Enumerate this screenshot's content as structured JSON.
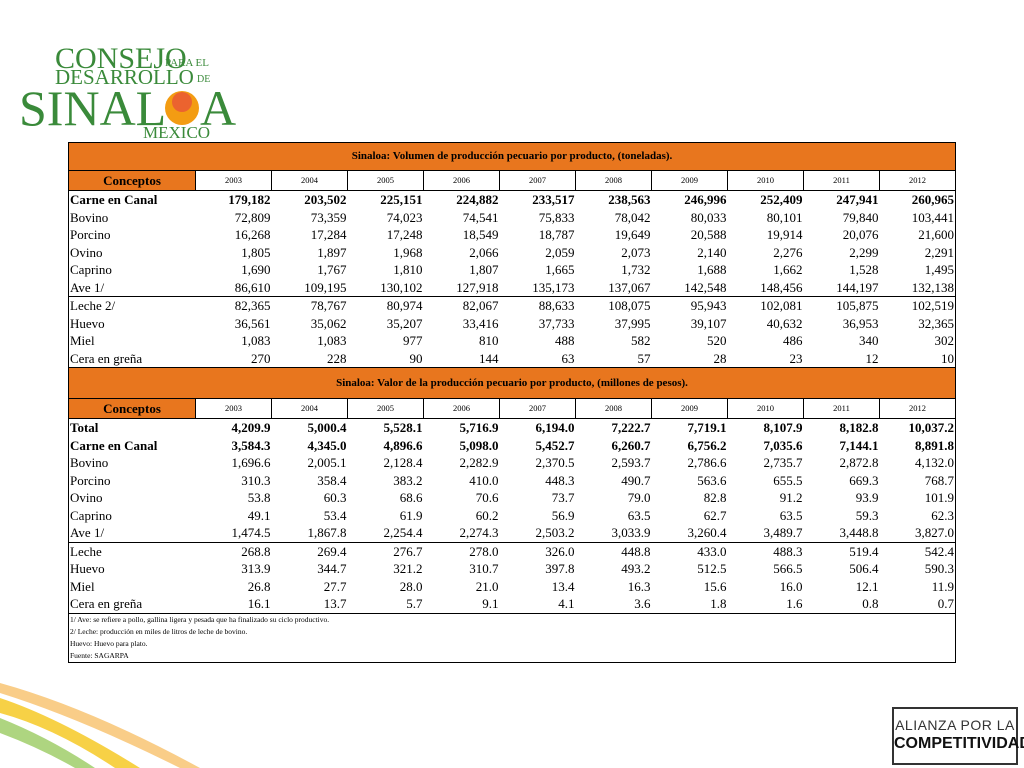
{
  "logo": {
    "consejo": "CONSEJO",
    "para_el": "PARA EL",
    "desarrollo": "DESARROLLO",
    "de": "DE",
    "sinal": "SINAL",
    "a": "A",
    "mexico": "MEXICO"
  },
  "alianza": {
    "line1": "ALIANZA POR LA",
    "line2": "COMPETITIVIDAD"
  },
  "tables": [
    {
      "title": "Sinaloa: Volumen de producción pecuario por producto, (toneladas).",
      "header": [
        "Conceptos",
        "2003",
        "2004",
        "2005",
        "2006",
        "2007",
        "2008",
        "2009",
        "2010",
        "2011",
        "2012"
      ],
      "rows": [
        {
          "label": "Carne en Canal",
          "values": [
            "179,182",
            "203,502",
            "225,151",
            "224,882",
            "233,517",
            "238,563",
            "246,996",
            "252,409",
            "247,941",
            "260,965"
          ]
        },
        {
          "label": "Bovino",
          "values": [
            "72,809",
            "73,359",
            "74,023",
            "74,541",
            "75,833",
            "78,042",
            "80,033",
            "80,101",
            "79,840",
            "103,441"
          ]
        },
        {
          "label": "Porcino",
          "values": [
            "16,268",
            "17,284",
            "17,248",
            "18,549",
            "18,787",
            "19,649",
            "20,588",
            "19,914",
            "20,076",
            "21,600"
          ]
        },
        {
          "label": "Ovino",
          "values": [
            "1,805",
            "1,897",
            "1,968",
            "2,066",
            "2,059",
            "2,073",
            "2,140",
            "2,276",
            "2,299",
            "2,291"
          ]
        },
        {
          "label": "Caprino",
          "values": [
            "1,690",
            "1,767",
            "1,810",
            "1,807",
            "1,665",
            "1,732",
            "1,688",
            "1,662",
            "1,528",
            "1,495"
          ]
        },
        {
          "label": "Ave 1/",
          "values": [
            "86,610",
            "109,195",
            "130,102",
            "127,918",
            "135,173",
            "137,067",
            "142,548",
            "148,456",
            "144,197",
            "132,138"
          ]
        },
        {
          "label": "Leche 2/",
          "values": [
            "82,365",
            "78,767",
            "80,974",
            "82,067",
            "88,633",
            "108,075",
            "95,943",
            "102,081",
            "105,875",
            "102,519"
          ]
        },
        {
          "label": "Huevo",
          "values": [
            "36,561",
            "35,062",
            "35,207",
            "33,416",
            "37,733",
            "37,995",
            "39,107",
            "40,632",
            "36,953",
            "32,365"
          ]
        },
        {
          "label": "Miel",
          "values": [
            "1,083",
            "1,083",
            "977",
            "810",
            "488",
            "582",
            "520",
            "486",
            "340",
            "302"
          ]
        },
        {
          "label": "Cera en greña",
          "values": [
            "270",
            "228",
            "90",
            "144",
            "63",
            "57",
            "28",
            "23",
            "12",
            "10"
          ]
        }
      ]
    },
    {
      "title": "Sinaloa: Valor de la producción pecuario por producto, (millones de pesos).",
      "header": [
        "Conceptos",
        "2003",
        "2004",
        "2005",
        "2006",
        "2007",
        "2008",
        "2009",
        "2010",
        "2011",
        "2012"
      ],
      "rows": [
        {
          "label": "Total",
          "values": [
            "4,209.9",
            "5,000.4",
            "5,528.1",
            "5,716.9",
            "6,194.0",
            "7,222.7",
            "7,719.1",
            "8,107.9",
            "8,182.8",
            "10,037.2"
          ]
        },
        {
          "label": "Carne en Canal",
          "values": [
            "3,584.3",
            "4,345.0",
            "4,896.6",
            "5,098.0",
            "5,452.7",
            "6,260.7",
            "6,756.2",
            "7,035.6",
            "7,144.1",
            "8,891.8"
          ]
        },
        {
          "label": "Bovino",
          "values": [
            "1,696.6",
            "2,005.1",
            "2,128.4",
            "2,282.9",
            "2,370.5",
            "2,593.7",
            "2,786.6",
            "2,735.7",
            "2,872.8",
            "4,132.0"
          ]
        },
        {
          "label": "Porcino",
          "values": [
            "310.3",
            "358.4",
            "383.2",
            "410.0",
            "448.3",
            "490.7",
            "563.6",
            "655.5",
            "669.3",
            "768.7"
          ]
        },
        {
          "label": "Ovino",
          "values": [
            "53.8",
            "60.3",
            "68.6",
            "70.6",
            "73.7",
            "79.0",
            "82.8",
            "91.2",
            "93.9",
            "101.9"
          ]
        },
        {
          "label": "Caprino",
          "values": [
            "49.1",
            "53.4",
            "61.9",
            "60.2",
            "56.9",
            "63.5",
            "62.7",
            "63.5",
            "59.3",
            "62.3"
          ]
        },
        {
          "label": "Ave 1/",
          "values": [
            "1,474.5",
            "1,867.8",
            "2,254.4",
            "2,274.3",
            "2,503.2",
            "3,033.9",
            "3,260.4",
            "3,489.7",
            "3,448.8",
            "3,827.0"
          ]
        },
        {
          "label": "Leche",
          "values": [
            "268.8",
            "269.4",
            "276.7",
            "278.0",
            "326.0",
            "448.8",
            "433.0",
            "488.3",
            "519.4",
            "542.4"
          ]
        },
        {
          "label": "Huevo",
          "values": [
            "313.9",
            "344.7",
            "321.2",
            "310.7",
            "397.8",
            "493.2",
            "512.5",
            "566.5",
            "506.4",
            "590.3"
          ]
        },
        {
          "label": "Miel",
          "values": [
            "26.8",
            "27.7",
            "28.0",
            "21.0",
            "13.4",
            "16.3",
            "15.6",
            "16.0",
            "12.1",
            "11.9"
          ]
        },
        {
          "label": "Cera en greña",
          "values": [
            "16.1",
            "13.7",
            "5.7",
            "9.1",
            "4.1",
            "3.6",
            "1.8",
            "1.6",
            "0.8",
            "0.7"
          ]
        }
      ]
    }
  ],
  "notes": [
    "1/ Ave: se refiere a pollo, gallina ligera y pesada que ha finalizado su ciclo productivo.",
    "2/ Leche: producción en miles de litros de leche de bovino.",
    "Huevo: Huevo para plato.",
    "Fuente: SAGARPA"
  ]
}
